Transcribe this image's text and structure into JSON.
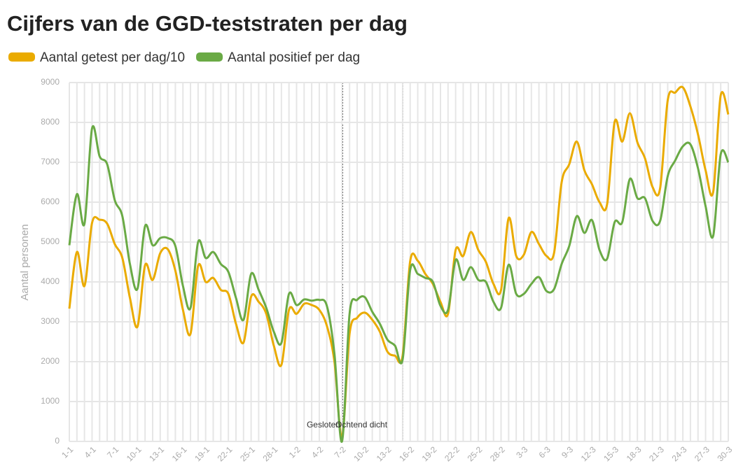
{
  "chart_data": {
    "type": "line",
    "title": "Cijfers van de GGD-teststraten per dag",
    "y_label": "Aantal personen",
    "categories": [
      "1-1",
      null,
      null,
      "4-1",
      null,
      null,
      "7-1",
      null,
      null,
      "10-1",
      null,
      null,
      "13-1",
      null,
      null,
      "16-1",
      null,
      null,
      "19-1",
      null,
      null,
      "22-1",
      null,
      null,
      "25-1",
      null,
      null,
      "28-1",
      null,
      null,
      "1-2",
      null,
      null,
      "4-2",
      null,
      null,
      "7-2",
      null,
      null,
      "10-2",
      null,
      null,
      "13-2",
      null,
      null,
      "16-2",
      null,
      null,
      "19-2",
      null,
      null,
      "22-2",
      null,
      null,
      "25-2",
      null,
      null,
      "28-2",
      null,
      null,
      "3-3",
      null,
      null,
      "6-3",
      null,
      null,
      "9-3",
      null,
      null,
      "12-3",
      null,
      null,
      "15-3",
      null,
      null,
      "18-3",
      null,
      null,
      "21-3",
      null,
      null,
      "24-3",
      null,
      null,
      "27-3",
      null,
      null,
      "30-3"
    ],
    "series": [
      {
        "name": "Aantal getest per dag/10",
        "color": "#eaab00",
        "values": [
          3330,
          4750,
          3900,
          5480,
          5560,
          5460,
          4950,
          4600,
          3600,
          2880,
          4420,
          4050,
          4720,
          4820,
          4280,
          3300,
          2700,
          4400,
          4000,
          4100,
          3800,
          3700,
          2950,
          2480,
          3630,
          3500,
          3200,
          2400,
          1920,
          3300,
          3200,
          3450,
          3420,
          3300,
          2900,
          2000,
          100,
          2700,
          3100,
          3230,
          3050,
          2750,
          2250,
          2150,
          2150,
          4520,
          4530,
          4200,
          3950,
          3500,
          3200,
          4800,
          4650,
          5250,
          4800,
          4500,
          3950,
          3800,
          5600,
          4650,
          4680,
          5250,
          4950,
          4650,
          4730,
          6500,
          6950,
          7520,
          6800,
          6450,
          6000,
          5950,
          8020,
          7520,
          8230,
          7500,
          7100,
          6380,
          6350,
          8550,
          8750,
          8880,
          8400,
          7700,
          6800,
          6250,
          8680,
          8200
        ]
      },
      {
        "name": "Aantal positief per dag",
        "color": "#6aaa45",
        "values": [
          4920,
          6200,
          5460,
          7850,
          7150,
          6950,
          6050,
          5650,
          4450,
          3830,
          5400,
          4920,
          5100,
          5100,
          4900,
          3900,
          3350,
          5000,
          4600,
          4750,
          4450,
          4250,
          3600,
          3050,
          4200,
          3800,
          3350,
          2750,
          2470,
          3700,
          3420,
          3560,
          3530,
          3550,
          3400,
          2200,
          0,
          3200,
          3550,
          3620,
          3250,
          2950,
          2550,
          2400,
          2050,
          4300,
          4200,
          4100,
          4000,
          3400,
          3300,
          4550,
          4050,
          4370,
          4050,
          4000,
          3500,
          3350,
          4430,
          3700,
          3700,
          3950,
          4120,
          3770,
          3820,
          4450,
          4900,
          5650,
          5230,
          5550,
          4800,
          4580,
          5500,
          5500,
          6580,
          6100,
          6100,
          5530,
          5530,
          6650,
          7050,
          7400,
          7450,
          6850,
          5900,
          5150,
          7200,
          7000
        ]
      }
    ],
    "annotations": [
      "Gesloten",
      "Ochtend dicht"
    ],
    "ylim": [
      0,
      9000
    ],
    "yticks": [
      0,
      1000,
      2000,
      3000,
      4000,
      5000,
      6000,
      7000,
      8000,
      9000
    ],
    "grid": true
  }
}
